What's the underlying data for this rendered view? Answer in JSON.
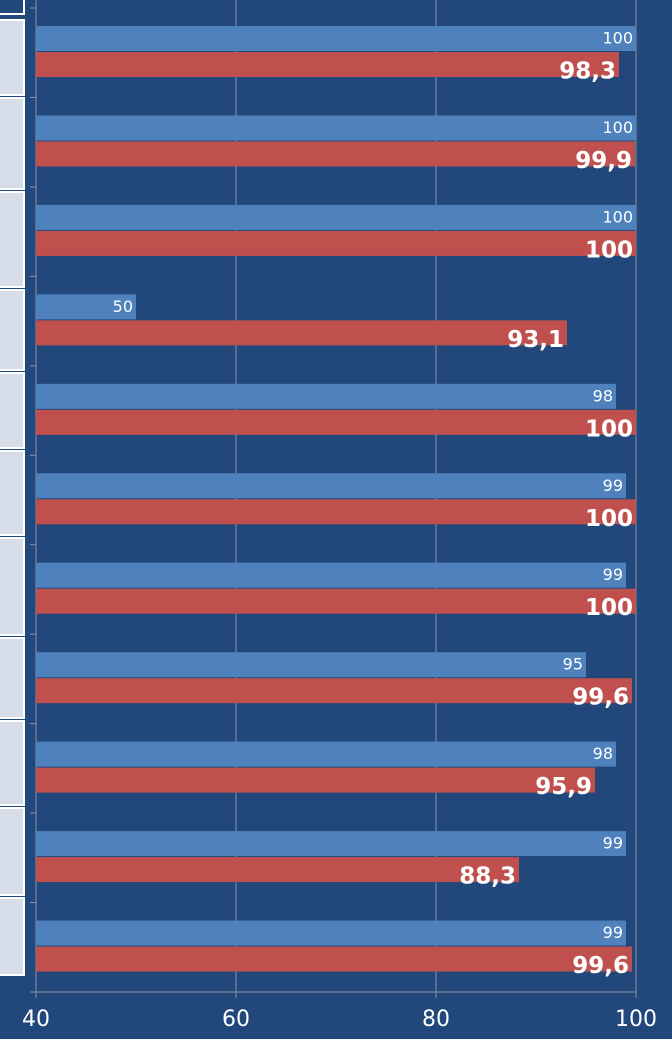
{
  "chart_data": {
    "type": "bar",
    "orientation": "horizontal",
    "categories": [
      null,
      null,
      null,
      null,
      null,
      null,
      null,
      null,
      null,
      null,
      null
    ],
    "series": [
      {
        "color": "#4f81bd",
        "values": [
          100,
          100,
          100,
          50,
          98,
          99,
          99,
          95,
          98,
          99,
          99
        ]
      },
      {
        "color": "#c0504d",
        "values": [
          98.3,
          99.9,
          100,
          93.1,
          100,
          100,
          100,
          99.6,
          95.9,
          88.3,
          99.6
        ],
        "value_labels": [
          "98,3",
          "99,9",
          "100",
          "93,1",
          "100",
          "100",
          "100",
          "99,6",
          "95,9",
          "88,3",
          "99,6"
        ]
      }
    ],
    "xlim": [
      40,
      100
    ],
    "xticks": [
      40,
      60,
      80,
      100
    ],
    "grid": true
  }
}
